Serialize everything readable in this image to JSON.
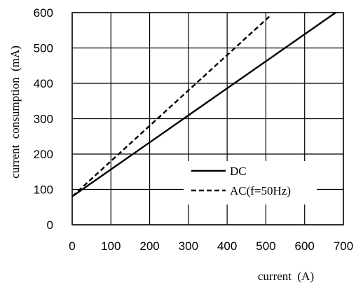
{
  "chart_data": {
    "type": "line",
    "title": "",
    "xlabel": "current  (A)",
    "ylabel": "current  consumption  (mA)",
    "xlim": [
      0,
      700
    ],
    "ylim": [
      0,
      600
    ],
    "x_ticks": [
      "0",
      "100",
      "200",
      "300",
      "400",
      "500",
      "600",
      "700"
    ],
    "y_ticks": [
      "0",
      "100",
      "200",
      "300",
      "400",
      "500",
      "600"
    ],
    "grid": true,
    "legend_position": "bottom-right",
    "series": [
      {
        "name": "DC",
        "style": "solid",
        "color": "#000000",
        "points": [
          [
            0,
            80
          ],
          [
            680,
            600
          ]
        ]
      },
      {
        "name": "AC(f=50Hz)",
        "style": "dashed",
        "color": "#000000",
        "points": [
          [
            0,
            80
          ],
          [
            510,
            590
          ]
        ]
      }
    ]
  }
}
